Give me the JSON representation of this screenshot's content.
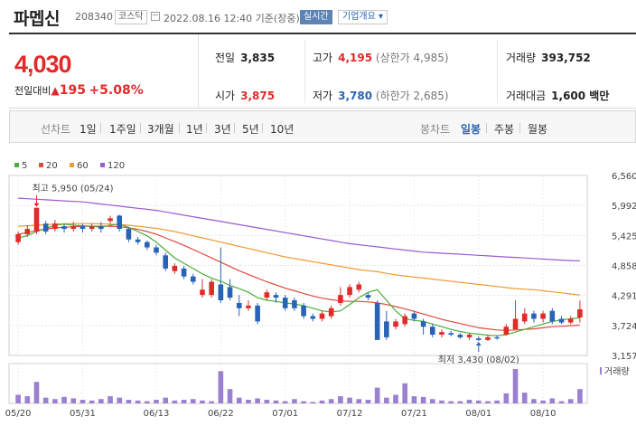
{
  "header": {
    "name": "파멥신",
    "code": "208340",
    "market": "코스닥",
    "datetime": "2022.08.16 12:40 기준(장중)",
    "realtime": "실시간",
    "company": "기업개요 ▾"
  },
  "summary": {
    "price": "4,030",
    "change_label": "전일대비",
    "change_arrow": "▲",
    "change_value": "195",
    "change_rate": "+5.08%",
    "prev_close_label": "전일",
    "prev_close": "3,835",
    "open_label": "시가",
    "open": "3,875",
    "high_label": "고가",
    "high": "4,195",
    "upper_limit": "(상한가 4,985)",
    "low_label": "저가",
    "low": "3,780",
    "lower_limit": "(하한가 2,685)",
    "volume_label": "거래량",
    "volume": "393,752",
    "amount_label": "거래대금",
    "amount": "1,600 백만"
  },
  "toolbar": {
    "line_label": "선차트",
    "ranges": [
      "1일",
      "1주일",
      "3개월",
      "1년",
      "3년",
      "5년",
      "10년"
    ],
    "candle_label": "봉차트",
    "candles": [
      "일봉",
      "주봉",
      "월봉"
    ],
    "active_candle": "일봉"
  },
  "colors": {
    "up": "#e12b2b",
    "down": "#2963b7",
    "ma5": "#4cae3a",
    "ma20": "#e14a3c",
    "ma60": "#f09a30",
    "ma120": "#9b5bd0",
    "volume": "#9b7fd0"
  },
  "chart_data": {
    "type": "candlestick",
    "legend": [
      "5",
      "20",
      "60",
      "120"
    ],
    "y_ticks": [
      "6,560",
      "5,992",
      "5,425",
      "4,858",
      "4,291",
      "3,724",
      "3,157"
    ],
    "ylim": [
      3157,
      6560
    ],
    "x_labels": [
      "05/20",
      "05/31",
      "06/13",
      "06/22",
      "07/01",
      "07/12",
      "07/21",
      "08/01",
      "08/10"
    ],
    "x_label_index": [
      0,
      7,
      15,
      22,
      29,
      36,
      43,
      50,
      57
    ],
    "annotations": {
      "high": "최고 5,950 (05/24)",
      "low": "최저 3,430 (08/02)"
    },
    "volume_label": "거래량",
    "candles": [
      {
        "o": 5300,
        "c": 5450,
        "h": 5500,
        "l": 5250
      },
      {
        "o": 5450,
        "c": 5550,
        "h": 5620,
        "l": 5400
      },
      {
        "o": 5500,
        "c": 5950,
        "h": 5950,
        "l": 5450
      },
      {
        "o": 5650,
        "c": 5500,
        "h": 5700,
        "l": 5450
      },
      {
        "o": 5550,
        "c": 5650,
        "h": 5720,
        "l": 5500
      },
      {
        "o": 5600,
        "c": 5550,
        "h": 5650,
        "l": 5480
      },
      {
        "o": 5550,
        "c": 5600,
        "h": 5680,
        "l": 5500
      },
      {
        "o": 5600,
        "c": 5550,
        "h": 5650,
        "l": 5480
      },
      {
        "o": 5550,
        "c": 5600,
        "h": 5650,
        "l": 5500
      },
      {
        "o": 5600,
        "c": 5550,
        "h": 5680,
        "l": 5480
      },
      {
        "o": 5700,
        "c": 5750,
        "h": 5800,
        "l": 5650
      },
      {
        "o": 5800,
        "c": 5550,
        "h": 5820,
        "l": 5500
      },
      {
        "o": 5550,
        "c": 5350,
        "h": 5580,
        "l": 5300
      },
      {
        "o": 5350,
        "c": 5300,
        "h": 5400,
        "l": 5250
      },
      {
        "o": 5300,
        "c": 5200,
        "h": 5330,
        "l": 5150
      },
      {
        "o": 5200,
        "c": 5100,
        "h": 5250,
        "l": 5050
      },
      {
        "o": 5050,
        "c": 4800,
        "h": 5100,
        "l": 4750
      },
      {
        "o": 4750,
        "c": 4850,
        "h": 4900,
        "l": 4700
      },
      {
        "o": 4800,
        "c": 4650,
        "h": 4850,
        "l": 4600
      },
      {
        "o": 4650,
        "c": 4550,
        "h": 4700,
        "l": 4500
      },
      {
        "o": 4300,
        "c": 4400,
        "h": 4600,
        "l": 4250
      },
      {
        "o": 4300,
        "c": 4550,
        "h": 4600,
        "l": 4250
      },
      {
        "o": 4500,
        "c": 4200,
        "h": 5200,
        "l": 4150
      },
      {
        "o": 4450,
        "c": 4250,
        "h": 4600,
        "l": 4200
      },
      {
        "o": 4150,
        "c": 4050,
        "h": 4300,
        "l": 3900
      },
      {
        "o": 4050,
        "c": 4100,
        "h": 4200,
        "l": 4000
      },
      {
        "o": 4100,
        "c": 3800,
        "h": 4150,
        "l": 3750
      },
      {
        "o": 4250,
        "c": 4350,
        "h": 4400,
        "l": 4200
      },
      {
        "o": 4300,
        "c": 4250,
        "h": 4350,
        "l": 4150
      },
      {
        "o": 4250,
        "c": 4050,
        "h": 4300,
        "l": 4000
      },
      {
        "o": 4200,
        "c": 4050,
        "h": 4250,
        "l": 4000
      },
      {
        "o": 4100,
        "c": 3900,
        "h": 4150,
        "l": 3850
      },
      {
        "o": 3900,
        "c": 3850,
        "h": 3950,
        "l": 3800
      },
      {
        "o": 3850,
        "c": 3950,
        "h": 4000,
        "l": 3800
      },
      {
        "o": 3900,
        "c": 4050,
        "h": 4100,
        "l": 3850
      },
      {
        "o": 4150,
        "c": 4300,
        "h": 4450,
        "l": 4100
      },
      {
        "o": 4300,
        "c": 4450,
        "h": 4500,
        "l": 4250
      },
      {
        "o": 4400,
        "c": 4500,
        "h": 4550,
        "l": 4350
      },
      {
        "o": 4300,
        "c": 4250,
        "h": 4350,
        "l": 4200
      },
      {
        "o": 4150,
        "c": 3450,
        "h": 4200,
        "l": 3450
      },
      {
        "o": 3800,
        "c": 3500,
        "h": 4000,
        "l": 3450
      },
      {
        "o": 3700,
        "c": 3800,
        "h": 3850,
        "l": 3650
      },
      {
        "o": 3750,
        "c": 3900,
        "h": 3950,
        "l": 3700
      },
      {
        "o": 3950,
        "c": 3850,
        "h": 4000,
        "l": 3800
      },
      {
        "o": 3800,
        "c": 3700,
        "h": 3850,
        "l": 3550
      },
      {
        "o": 3700,
        "c": 3550,
        "h": 3750,
        "l": 3500
      },
      {
        "o": 3550,
        "c": 3600,
        "h": 3650,
        "l": 3500
      },
      {
        "o": 3580,
        "c": 3550,
        "h": 3620,
        "l": 3520
      },
      {
        "o": 3550,
        "c": 3500,
        "h": 3580,
        "l": 3470
      },
      {
        "o": 3500,
        "c": 3550,
        "h": 3580,
        "l": 3450
      },
      {
        "o": 3480,
        "c": 3450,
        "h": 3520,
        "l": 3430
      },
      {
        "o": 3450,
        "c": 3500,
        "h": 3550,
        "l": 3430
      },
      {
        "o": 3500,
        "c": 3480,
        "h": 3540,
        "l": 3450
      },
      {
        "o": 3550,
        "c": 3700,
        "h": 3750,
        "l": 3530
      },
      {
        "o": 3650,
        "c": 3850,
        "h": 4200,
        "l": 3650
      },
      {
        "o": 3800,
        "c": 3950,
        "h": 4050,
        "l": 3750
      },
      {
        "o": 3950,
        "c": 3850,
        "h": 4000,
        "l": 3780
      },
      {
        "o": 3850,
        "c": 3950,
        "h": 4000,
        "l": 3780
      },
      {
        "o": 4000,
        "c": 3800,
        "h": 4050,
        "l": 3750
      },
      {
        "o": 3850,
        "c": 3780,
        "h": 3900,
        "l": 3750
      },
      {
        "o": 3780,
        "c": 3850,
        "h": 3900,
        "l": 3750
      },
      {
        "o": 3875,
        "c": 4030,
        "h": 4195,
        "l": 3780
      }
    ],
    "volumes": [
      12,
      10,
      30,
      8,
      6,
      9,
      7,
      5,
      4,
      6,
      10,
      8,
      5,
      4,
      3,
      5,
      8,
      4,
      5,
      6,
      4,
      3,
      45,
      20,
      8,
      5,
      7,
      5,
      4,
      3,
      6,
      3,
      2,
      4,
      6,
      10,
      8,
      6,
      5,
      22,
      8,
      12,
      28,
      10,
      9,
      6,
      4,
      3,
      3,
      5,
      4,
      3,
      4,
      14,
      48,
      15,
      6,
      4,
      7,
      3,
      6,
      20
    ],
    "ma5": [
      5380,
      5420,
      5500,
      5560,
      5620,
      5640,
      5620,
      5610,
      5600,
      5580,
      5620,
      5640,
      5580,
      5500,
      5420,
      5300,
      5150,
      5000,
      4900,
      4800,
      4700,
      4620,
      4560,
      4480,
      4420,
      4350,
      4250,
      4200,
      4180,
      4150,
      4130,
      4100,
      4050,
      4000,
      3980,
      4000,
      4120,
      4250,
      4350,
      4400,
      4200,
      4000,
      3850,
      3820,
      3800,
      3750,
      3700,
      3650,
      3610,
      3580,
      3560,
      3540,
      3530,
      3550,
      3600,
      3650,
      3700,
      3750,
      3800,
      3830,
      3850,
      3870
    ],
    "ma20": [
      5450,
      5480,
      5520,
      5550,
      5570,
      5580,
      5590,
      5600,
      5600,
      5600,
      5600,
      5590,
      5570,
      5540,
      5500,
      5450,
      5380,
      5310,
      5240,
      5160,
      5080,
      5000,
      4920,
      4840,
      4760,
      4690,
      4620,
      4550,
      4490,
      4430,
      4380,
      4330,
      4280,
      4240,
      4210,
      4190,
      4180,
      4180,
      4170,
      4150,
      4120,
      4080,
      4040,
      3990,
      3940,
      3890,
      3840,
      3800,
      3760,
      3720,
      3680,
      3660,
      3640,
      3630,
      3640,
      3650,
      3660,
      3680,
      3700,
      3710,
      3720,
      3730
    ],
    "ma60": [
      5600,
      5610,
      5620,
      5630,
      5640,
      5645,
      5650,
      5650,
      5648,
      5645,
      5640,
      5630,
      5620,
      5600,
      5580,
      5560,
      5530,
      5500,
      5460,
      5420,
      5380,
      5340,
      5300,
      5260,
      5220,
      5180,
      5140,
      5100,
      5060,
      5020,
      4990,
      4960,
      4930,
      4900,
      4870,
      4840,
      4810,
      4780,
      4760,
      4740,
      4710,
      4680,
      4660,
      4640,
      4620,
      4600,
      4580,
      4560,
      4540,
      4520,
      4500,
      4480,
      4460,
      4440,
      4420,
      4410,
      4400,
      4380,
      4360,
      4340,
      4320,
      4300
    ],
    "ma120": [
      6130,
      6120,
      6110,
      6100,
      6090,
      6080,
      6070,
      6060,
      6040,
      6020,
      6000,
      5980,
      5960,
      5940,
      5920,
      5900,
      5870,
      5840,
      5810,
      5780,
      5750,
      5720,
      5690,
      5660,
      5630,
      5600,
      5570,
      5540,
      5510,
      5480,
      5450,
      5420,
      5390,
      5360,
      5330,
      5300,
      5270,
      5250,
      5230,
      5210,
      5190,
      5170,
      5150,
      5130,
      5110,
      5100,
      5090,
      5080,
      5070,
      5060,
      5050,
      5040,
      5030,
      5020,
      5010,
      5000,
      4990,
      4980,
      4970,
      4960,
      4950,
      4945
    ]
  }
}
